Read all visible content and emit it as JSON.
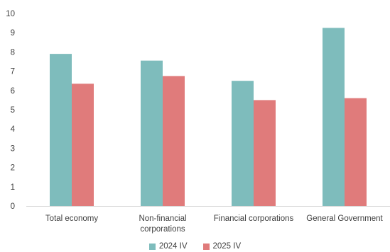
{
  "chart_data": {
    "type": "bar",
    "title": "",
    "xlabel": "",
    "ylabel": "",
    "ylim": [
      0,
      10
    ],
    "yticks": [
      0,
      1,
      2,
      3,
      4,
      5,
      6,
      7,
      8,
      9,
      10
    ],
    "grid": false,
    "legend_position": "bottom",
    "categories": [
      [
        "Total economy"
      ],
      [
        "Non-financial",
        "corporations"
      ],
      [
        "Financial corporations"
      ],
      [
        "General Government"
      ]
    ],
    "series": [
      {
        "name": "2024 IV",
        "color": "#7ebcbc",
        "values": [
          7.9,
          7.55,
          6.5,
          9.25
        ]
      },
      {
        "name": "2025 IV",
        "color": "#e07b7b",
        "values": [
          6.35,
          6.75,
          5.5,
          5.6
        ]
      }
    ]
  }
}
